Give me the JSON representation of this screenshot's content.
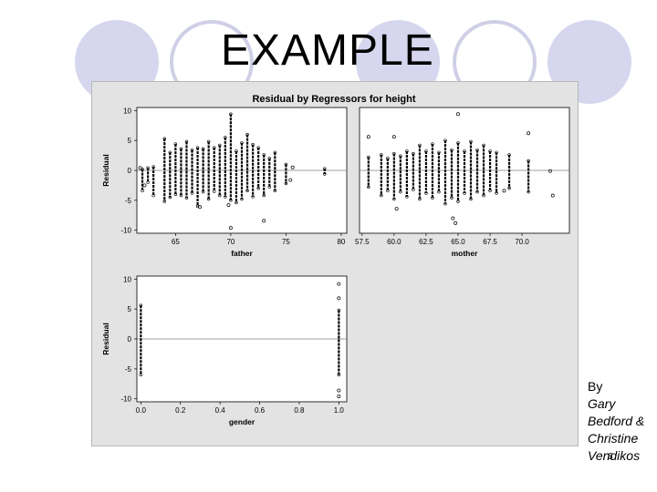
{
  "slide": {
    "title": "EXAMPLE",
    "credit_by": "By",
    "credit_names": "Gary\nBedford &\nChristine\nVendikos",
    "page_number": "6"
  },
  "colors": {
    "circle_fill": "#d6d6ee",
    "circle_stroke": "#cfcfe6",
    "figure_bg": "#e3e3e3",
    "panel_bg": "#ffffff",
    "marker": "#000000",
    "zero_line": "#808080"
  },
  "chart_data": {
    "type": "scatter",
    "title": "Residual by Regressors for height",
    "panels": [
      {
        "xlabel": "father",
        "ylabel": "Residual",
        "xlim": [
          61.5,
          80.5
        ],
        "ylim": [
          -10.5,
          10.5
        ],
        "xticks": [
          "65",
          "70",
          "75",
          "80"
        ],
        "xtick_values": [
          65,
          70,
          75,
          80
        ],
        "yticks": [
          "10",
          "5",
          "0",
          "-5",
          "-10"
        ],
        "ytick_values": [
          10,
          5,
          0,
          -5,
          -10
        ],
        "columns": [
          {
            "x": 62.0,
            "min": -3.4,
            "max": 0.2
          },
          {
            "x": 62.5,
            "min": -2.0,
            "max": 0.4
          },
          {
            "x": 63.0,
            "min": -4.2,
            "max": 0.6
          },
          {
            "x": 64.0,
            "min": -5.2,
            "max": 5.3
          },
          {
            "x": 64.5,
            "min": -4.5,
            "max": 3.0
          },
          {
            "x": 65.0,
            "min": -4.0,
            "max": 4.4
          },
          {
            "x": 65.5,
            "min": -4.2,
            "max": 3.6
          },
          {
            "x": 66.0,
            "min": -4.6,
            "max": 4.8
          },
          {
            "x": 66.5,
            "min": -3.8,
            "max": 3.4
          },
          {
            "x": 67.0,
            "min": -6.0,
            "max": 3.8
          },
          {
            "x": 67.5,
            "min": -3.6,
            "max": 3.6
          },
          {
            "x": 68.0,
            "min": -4.8,
            "max": 4.8
          },
          {
            "x": 68.5,
            "min": -3.5,
            "max": 3.8
          },
          {
            "x": 69.0,
            "min": -4.2,
            "max": 4.2
          },
          {
            "x": 69.5,
            "min": -4.4,
            "max": 5.5
          },
          {
            "x": 70.0,
            "min": -5.0,
            "max": 9.4
          },
          {
            "x": 70.5,
            "min": -5.4,
            "max": 3.2
          },
          {
            "x": 71.0,
            "min": -4.8,
            "max": 4.6
          },
          {
            "x": 71.5,
            "min": -3.4,
            "max": 6.0
          },
          {
            "x": 72.0,
            "min": -4.4,
            "max": 4.3
          },
          {
            "x": 72.5,
            "min": -3.0,
            "max": 3.8
          },
          {
            "x": 73.0,
            "min": -4.2,
            "max": 2.6
          },
          {
            "x": 73.5,
            "min": -2.8,
            "max": 2.0
          },
          {
            "x": 74.0,
            "min": -3.4,
            "max": 3.0
          },
          {
            "x": 75.0,
            "min": -2.2,
            "max": 1.0
          },
          {
            "x": 78.5,
            "min": -0.6,
            "max": 0.3
          }
        ],
        "scattered_points": [
          [
            61.8,
            0.4
          ],
          [
            62.2,
            -2.5
          ],
          [
            70.0,
            -9.6
          ],
          [
            73.0,
            -8.4
          ],
          [
            67.2,
            -6.1
          ],
          [
            69.8,
            -5.8
          ],
          [
            75.6,
            0.5
          ],
          [
            75.4,
            -1.6
          ]
        ]
      },
      {
        "xlabel": "mother",
        "ylabel": "",
        "xlim": [
          57.3,
          73.7
        ],
        "ylim": [
          -10.5,
          10.5
        ],
        "xticks": [
          "57.5",
          "60.0",
          "62.5",
          "65.0",
          "67.5",
          "70.0"
        ],
        "xtick_values": [
          57.5,
          60.0,
          62.5,
          65.0,
          67.5,
          70.0
        ],
        "yticks": [],
        "ytick_values": [],
        "columns": [
          {
            "x": 58.0,
            "min": -2.8,
            "max": 2.2
          },
          {
            "x": 59.0,
            "min": -4.2,
            "max": 2.6
          },
          {
            "x": 59.5,
            "min": -3.4,
            "max": 2.0
          },
          {
            "x": 60.0,
            "min": -4.8,
            "max": 2.8
          },
          {
            "x": 60.5,
            "min": -3.6,
            "max": 2.4
          },
          {
            "x": 61.0,
            "min": -4.4,
            "max": 3.2
          },
          {
            "x": 61.5,
            "min": -3.2,
            "max": 2.8
          },
          {
            "x": 62.0,
            "min": -4.8,
            "max": 4.2
          },
          {
            "x": 62.5,
            "min": -3.8,
            "max": 3.2
          },
          {
            "x": 63.0,
            "min": -4.6,
            "max": 4.4
          },
          {
            "x": 63.5,
            "min": -3.6,
            "max": 3.0
          },
          {
            "x": 64.0,
            "min": -5.6,
            "max": 5.0
          },
          {
            "x": 64.5,
            "min": -4.6,
            "max": 3.4
          },
          {
            "x": 65.0,
            "min": -5.2,
            "max": 4.6
          },
          {
            "x": 65.5,
            "min": -3.8,
            "max": 3.2
          },
          {
            "x": 66.0,
            "min": -4.8,
            "max": 4.8
          },
          {
            "x": 66.5,
            "min": -3.6,
            "max": 3.4
          },
          {
            "x": 67.0,
            "min": -4.2,
            "max": 4.2
          },
          {
            "x": 67.5,
            "min": -3.4,
            "max": 3.2
          },
          {
            "x": 68.0,
            "min": -3.8,
            "max": 3.0
          },
          {
            "x": 69.0,
            "min": -3.0,
            "max": 2.6
          },
          {
            "x": 70.5,
            "min": -3.6,
            "max": 1.6
          }
        ],
        "scattered_points": [
          [
            58.0,
            5.6
          ],
          [
            60.0,
            5.6
          ],
          [
            60.2,
            -6.4
          ],
          [
            65.0,
            9.4
          ],
          [
            64.6,
            -8.0
          ],
          [
            64.8,
            -8.8
          ],
          [
            70.5,
            6.2
          ],
          [
            72.2,
            -0.1
          ],
          [
            72.4,
            -4.2
          ],
          [
            68.6,
            -3.4
          ]
        ]
      },
      {
        "xlabel": "gender",
        "ylabel": "Residual",
        "xlim": [
          -0.02,
          1.04
        ],
        "ylim": [
          -10.5,
          10.5
        ],
        "xticks": [
          "0.0",
          "0.2",
          "0.4",
          "0.6",
          "0.8",
          "1.0"
        ],
        "xtick_values": [
          0.0,
          0.2,
          0.4,
          0.6,
          0.8,
          1.0
        ],
        "yticks": [
          "10",
          "5",
          "0",
          "-5",
          "-10"
        ],
        "ytick_values": [
          10,
          5,
          0,
          -5,
          -10
        ],
        "columns": [
          {
            "x": 0.0,
            "min": -6.0,
            "max": 5.6
          },
          {
            "x": 1.0,
            "min": -6.0,
            "max": 4.8
          }
        ],
        "scattered_points": [
          [
            1.0,
            9.2
          ],
          [
            1.0,
            6.8
          ],
          [
            1.0,
            -8.6
          ],
          [
            1.0,
            -9.6
          ]
        ]
      }
    ]
  }
}
